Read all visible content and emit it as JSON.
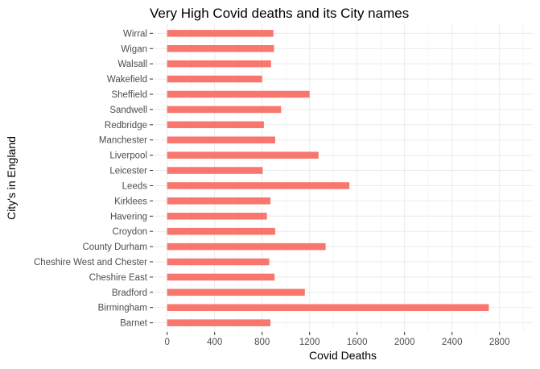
{
  "chart_data": {
    "type": "bar",
    "orientation": "horizontal",
    "title": "Very High Covid deaths and its City names",
    "xlabel": "Covid Deaths",
    "ylabel": "City's in England",
    "xlim": [
      -120,
      3080
    ],
    "xticks": [
      0,
      400,
      800,
      1200,
      1600,
      2000,
      2400,
      2800
    ],
    "grid": true,
    "bar_color": "#f8766d",
    "categories": [
      "Barnet",
      "Birmingham",
      "Bradford",
      "Cheshire East",
      "Cheshire West and Chester",
      "County Durham",
      "Croydon",
      "Havering",
      "Kirklees",
      "Leeds",
      "Leicester",
      "Liverpool",
      "Manchester",
      "Redbridge",
      "Sandwell",
      "Sheffield",
      "Wakefield",
      "Walsall",
      "Wigan",
      "Wirral"
    ],
    "values": [
      870,
      2710,
      1160,
      905,
      860,
      1335,
      910,
      840,
      870,
      1535,
      805,
      1275,
      910,
      815,
      960,
      1200,
      800,
      875,
      900,
      895
    ]
  }
}
